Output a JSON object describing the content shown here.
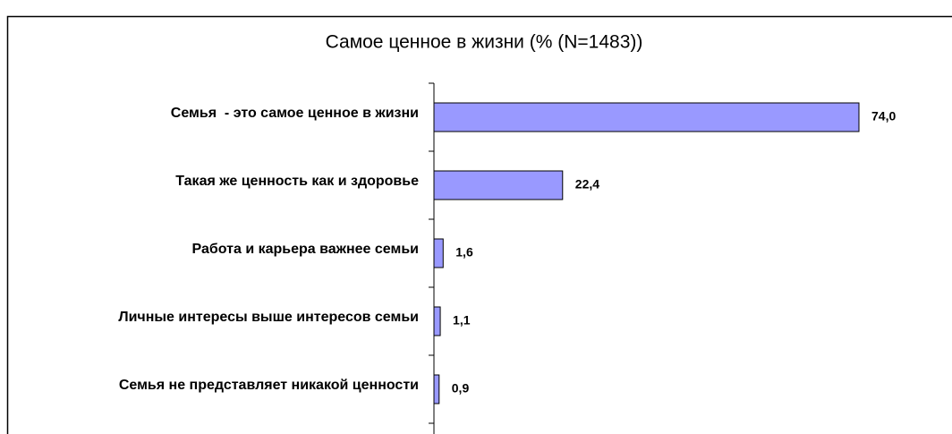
{
  "chart_data": {
    "type": "barh",
    "title": "Самое ценное в жизни (% (N=1483))",
    "categories": [
      "Семья  - это самое ценное в жизни",
      "Такая же ценность как и здоровье",
      "Работа и карьера важнее семьи",
      "Личные интересы выше интересов семьи",
      "Семья не представляет никакой ценности"
    ],
    "values": [
      74.0,
      22.4,
      1.6,
      1.1,
      0.9
    ],
    "value_labels": [
      "74,0",
      "22,4",
      "1,6",
      "1,1",
      "0,9"
    ],
    "color": "#9999ff"
  }
}
